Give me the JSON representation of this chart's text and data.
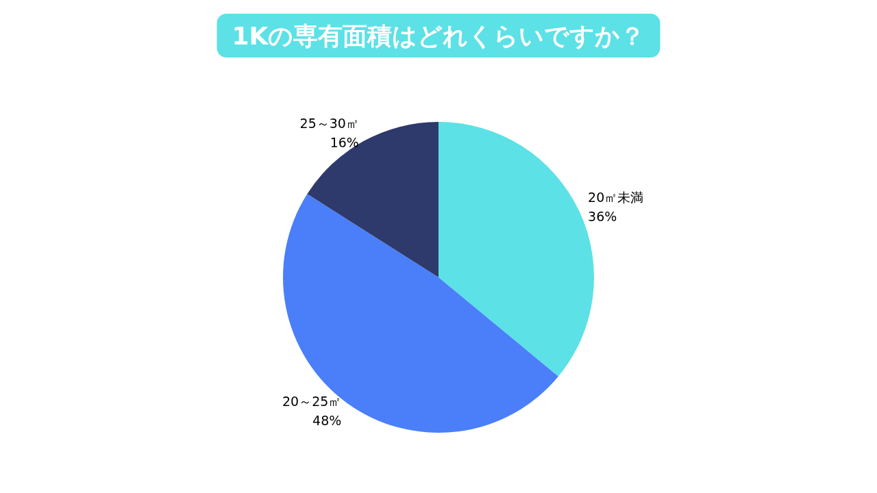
{
  "chart_data": {
    "type": "pie",
    "title": "1Kの専有面積はどれくらいですか？",
    "categories": [
      "20㎡未満",
      "20～25㎡",
      "25～30㎡"
    ],
    "values": [
      36,
      48,
      16
    ],
    "value_labels": [
      "36%",
      "48%",
      "16%"
    ],
    "colors": [
      "#5ce1e6",
      "#4a7ff9",
      "#2e3a6b"
    ],
    "legend": false
  }
}
